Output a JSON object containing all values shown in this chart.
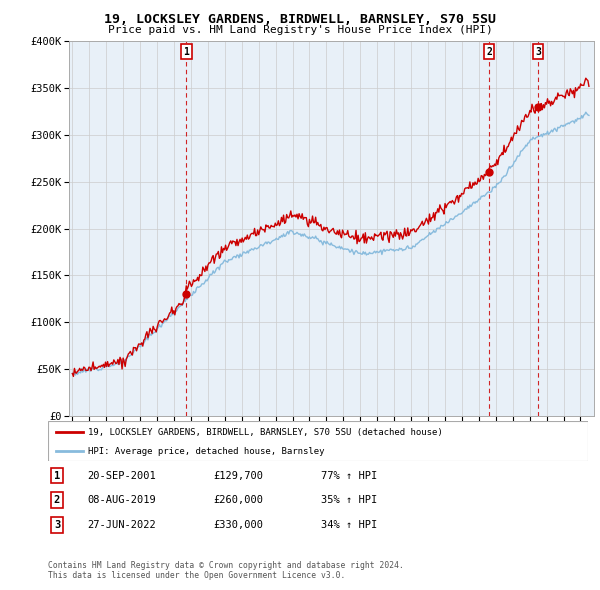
{
  "title": "19, LOCKSLEY GARDENS, BIRDWELL, BARNSLEY, S70 5SU",
  "subtitle": "Price paid vs. HM Land Registry's House Price Index (HPI)",
  "property_label": "19, LOCKSLEY GARDENS, BIRDWELL, BARNSLEY, S70 5SU (detached house)",
  "hpi_label": "HPI: Average price, detached house, Barnsley",
  "sales": [
    {
      "num": 1,
      "date": "20-SEP-2001",
      "price": 129700,
      "pct": "77% ↑ HPI",
      "year": 2001.72
    },
    {
      "num": 2,
      "date": "08-AUG-2019",
      "price": 260000,
      "pct": "35% ↑ HPI",
      "year": 2019.6
    },
    {
      "num": 3,
      "date": "27-JUN-2022",
      "price": 330000,
      "pct": "34% ↑ HPI",
      "year": 2022.49
    }
  ],
  "footnote1": "Contains HM Land Registry data © Crown copyright and database right 2024.",
  "footnote2": "This data is licensed under the Open Government Licence v3.0.",
  "property_color": "#cc0000",
  "hpi_color": "#88bbdd",
  "chart_bg": "#e8f0f8",
  "sale_marker_color": "#cc0000",
  "ylim": [
    0,
    400000
  ],
  "xlim_min": 1994.8,
  "xlim_max": 2025.8,
  "background_color": "#ffffff",
  "grid_color": "#cccccc"
}
